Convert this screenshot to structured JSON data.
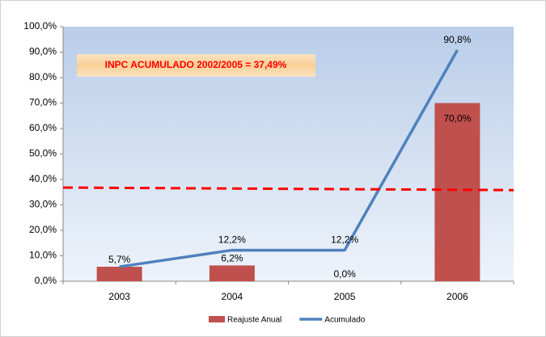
{
  "chart_data": {
    "type": "bar-line",
    "categories": [
      "2003",
      "2004",
      "2005",
      "2006"
    ],
    "series": [
      {
        "name": "Reajuste Anual",
        "type": "bar",
        "color": "#c0504d",
        "values": [
          5.7,
          6.2,
          0.0,
          70.0
        ],
        "value_labels": [
          "5,7%",
          "6,2%",
          "0,0%",
          "70,0%"
        ]
      },
      {
        "name": "Acumulado",
        "type": "line",
        "color": "#4f81bd",
        "values": [
          5.7,
          12.2,
          12.2,
          90.8
        ],
        "value_labels": [
          null,
          "12,2%",
          "12,2%",
          "90,8%"
        ]
      }
    ],
    "ylim": [
      0,
      100
    ],
    "yticks": [
      {
        "value": 0,
        "label": "0,0%"
      },
      {
        "value": 10,
        "label": "10,0%"
      },
      {
        "value": 20,
        "label": "20,0%"
      },
      {
        "value": 30,
        "label": "30,0%"
      },
      {
        "value": 40,
        "label": "40,0%"
      },
      {
        "value": 50,
        "label": "50,0%"
      },
      {
        "value": 60,
        "label": "60,0%"
      },
      {
        "value": 70,
        "label": "70,0%"
      },
      {
        "value": 80,
        "label": "80,0%"
      },
      {
        "value": 90,
        "label": "90,0%"
      },
      {
        "value": 100,
        "label": "100,0%"
      }
    ],
    "annotation": "INPC ACUMULADO 2002/2005 = 37,49%",
    "reference_line": {
      "color": "#ff0000",
      "start": 36.8,
      "end": 35.8
    },
    "legend": "bottom"
  }
}
